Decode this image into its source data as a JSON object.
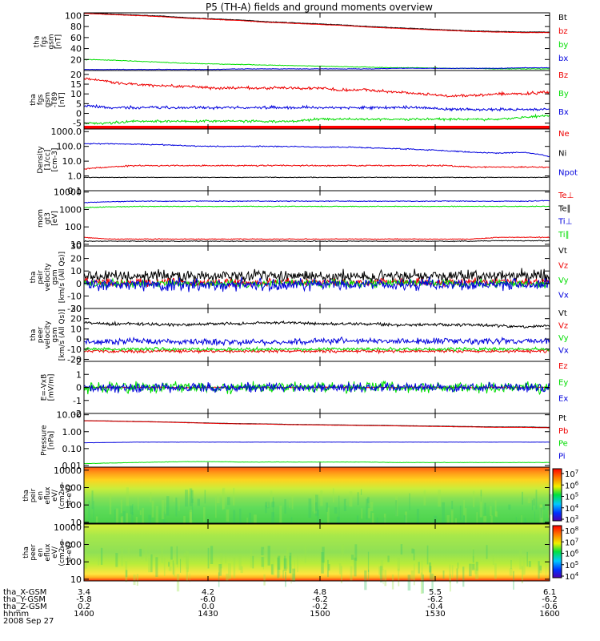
{
  "title": "P5 (TH-A) fields and ground moments overview",
  "colors": {
    "black": "#000000",
    "red": "#ee0000",
    "green": "#00dd00",
    "blue": "#0000dd",
    "frame": "#000000"
  },
  "footer": {
    "rows": [
      {
        "label": "tha_X-GSM",
        "values": [
          "3.4",
          "4.2",
          "4.8",
          "5.5",
          "6.1"
        ]
      },
      {
        "label": "tha_Y-GSM",
        "values": [
          "-5.8",
          "-6.0",
          "-6.2",
          "-6.2",
          "-6.2"
        ]
      },
      {
        "label": "tha_Z-GSM",
        "values": [
          "0.2",
          "0.0",
          "-0.2",
          "-0.4",
          "-0.6"
        ]
      },
      {
        "label": "hhmm",
        "values": [
          "1400",
          "1430",
          "1500",
          "1530",
          "1600"
        ]
      }
    ],
    "date": "2008 Sep 27"
  },
  "chart_data": [
    {
      "type": "line",
      "ylabel": "tha\nfgs\ngsm\n[nT]",
      "ylim": [
        0,
        105
      ],
      "yticks": [
        "100",
        "80",
        "60",
        "40",
        "20"
      ],
      "series": [
        {
          "name": "Bt",
          "color": "#000000",
          "values": [
            105,
            103,
            101,
            99,
            96,
            94,
            92,
            89,
            87,
            85,
            83,
            80,
            78,
            76,
            74,
            72,
            71,
            70,
            70
          ],
          "noise": 0.4
        },
        {
          "name": "bz",
          "color": "#ee0000",
          "values": [
            104,
            102,
            100,
            98,
            95,
            93,
            91,
            88,
            86,
            84,
            82,
            79,
            77,
            75,
            73,
            71,
            70,
            69,
            69
          ],
          "noise": 0.3
        },
        {
          "name": "by",
          "color": "#00dd00",
          "values": [
            20,
            19,
            17,
            15,
            13,
            12,
            11,
            10,
            9,
            8,
            7,
            6,
            5,
            5,
            4,
            4,
            3,
            3,
            3
          ],
          "noise": 0.5
        },
        {
          "name": "bx",
          "color": "#0000dd",
          "values": [
            2,
            2,
            2,
            2,
            2,
            2,
            3,
            3,
            3,
            3,
            3,
            3,
            4,
            4,
            4,
            4,
            4,
            5,
            5
          ],
          "noise": 0.4
        }
      ]
    },
    {
      "type": "line",
      "ylabel": "tha\nfgs\ngsm\n-T89\n[nT]",
      "ylim": [
        -8,
        22
      ],
      "yticks": [
        "20",
        "15",
        "10",
        "5",
        "0",
        "-5"
      ],
      "series": [
        {
          "name": "Bz",
          "color": "#ee0000",
          "values": [
            18,
            16,
            15,
            14,
            14,
            13,
            13,
            13,
            13,
            13,
            12,
            12,
            11,
            10,
            9,
            9,
            10,
            10,
            11
          ],
          "noise": 0.6
        },
        {
          "name": "By",
          "color": "#00dd00",
          "values": [
            -5,
            -5,
            -4,
            -4,
            -4,
            -4,
            -4,
            -4,
            -4,
            -3,
            -3,
            -3,
            -3,
            -3,
            -3,
            -3,
            -3,
            -2,
            -1
          ],
          "noise": 0.5
        },
        {
          "name": "Bx",
          "color": "#0000dd",
          "values": [
            4,
            3,
            3,
            3,
            3,
            3,
            3,
            3,
            3,
            3,
            3,
            3,
            3,
            3,
            2,
            2,
            2,
            2,
            2
          ],
          "noise": 0.6
        }
      ]
    },
    {
      "type": "line",
      "ylabel": "Density\n[1/cc]\n[cm-3]",
      "scale": "log",
      "ylim": [
        0.1,
        1500
      ],
      "yticks": [
        "1000.0",
        "100.0",
        "10.0",
        "1.0",
        "0.1"
      ],
      "series": [
        {
          "name": "Ne",
          "color": "#ee0000",
          "values": [
            3,
            4,
            5,
            5,
            5,
            5,
            5,
            5,
            5,
            5,
            5,
            5,
            5,
            5,
            5,
            4,
            4,
            4,
            4
          ],
          "noise": 0.04
        },
        {
          "name": "Ni",
          "color": "#000000",
          "values": [
            0.8,
            0.8,
            0.8,
            0.8,
            0.8,
            0.8,
            0.8,
            0.8,
            0.8,
            0.8,
            0.8,
            0.8,
            0.8,
            0.8,
            0.8,
            0.8,
            0.8,
            0.8,
            0.8
          ],
          "noise": 0.02
        },
        {
          "name": "Npot",
          "color": "#0000dd",
          "values": [
            150,
            150,
            140,
            130,
            110,
            100,
            100,
            100,
            100,
            90,
            90,
            80,
            70,
            60,
            50,
            40,
            35,
            40,
            20
          ],
          "noise": 0.03
        }
      ]
    },
    {
      "type": "line",
      "ylabel": "mom\ngt3\n[eV]",
      "scale": "log",
      "ylim": [
        8,
        12000
      ],
      "yticks": [
        "10000",
        "1000",
        "100",
        "10"
      ],
      "series": [
        {
          "name": "Te⊥",
          "color": "#ee0000",
          "values": [
            25,
            20,
            20,
            20,
            20,
            20,
            20,
            20,
            20,
            20,
            20,
            20,
            20,
            20,
            20,
            20,
            25,
            25,
            25
          ],
          "noise": 0.02
        },
        {
          "name": "Te∥",
          "color": "#000000",
          "values": [
            15,
            15,
            15,
            15,
            15,
            15,
            15,
            15,
            15,
            15,
            15,
            15,
            15,
            15,
            15,
            15,
            16,
            16,
            16
          ],
          "noise": 0.02
        },
        {
          "name": "Ti⊥",
          "color": "#0000dd",
          "values": [
            2500,
            2800,
            3000,
            3000,
            3000,
            3000,
            3000,
            3000,
            3000,
            3000,
            3000,
            3000,
            3000,
            3000,
            3000,
            3000,
            3000,
            3000,
            3200
          ],
          "noise": 0.02
        },
        {
          "name": "Ti∥",
          "color": "#00dd00",
          "values": [
            1300,
            1400,
            1500,
            1500,
            1500,
            1500,
            1500,
            1500,
            1500,
            1500,
            1500,
            1500,
            1500,
            1500,
            1500,
            1500,
            1500,
            1500,
            1500
          ],
          "noise": 0.02
        }
      ]
    },
    {
      "type": "line",
      "ylabel": "tha\npeir\nvelocity\ngsm\n[km/s (All Qs)]",
      "ylim": [
        -20,
        30
      ],
      "yticks": [
        "30",
        "20",
        "10",
        "0",
        "-10",
        "-20"
      ],
      "series": [
        {
          "name": "Vt",
          "color": "#000000",
          "values": [
            6,
            6,
            6,
            6,
            6,
            6,
            6,
            6,
            6,
            6,
            6,
            6,
            6,
            6,
            6,
            6,
            6,
            6,
            6
          ],
          "noise": 4
        },
        {
          "name": "Vz",
          "color": "#ee0000",
          "values": [
            1,
            1,
            1,
            1,
            1,
            1,
            1,
            1,
            1,
            1,
            1,
            1,
            1,
            1,
            1,
            1,
            1,
            1,
            1
          ],
          "noise": 2.5
        },
        {
          "name": "Vy",
          "color": "#00dd00",
          "values": [
            0,
            0,
            0,
            0,
            0,
            0,
            0,
            0,
            0,
            0,
            0,
            0,
            0,
            0,
            0,
            0,
            0,
            0,
            0
          ],
          "noise": 2.5
        },
        {
          "name": "Vx",
          "color": "#0000dd",
          "values": [
            -1,
            -1,
            -1,
            -1,
            -1,
            -1,
            -1,
            -1,
            -1,
            -1,
            -1,
            -1,
            -1,
            -1,
            -1,
            -1,
            -1,
            -1,
            -1
          ],
          "noise": 4
        }
      ]
    },
    {
      "type": "line",
      "ylabel": "tha\npeer\nvelocity\ngsm\n[km/s (All Qs)]",
      "ylim": [
        -22,
        30
      ],
      "yticks": [
        "30",
        "20",
        "10",
        "0",
        "-10",
        "-20"
      ],
      "series": [
        {
          "name": "Vt",
          "color": "#000000",
          "values": [
            16,
            15,
            15,
            14,
            14,
            15,
            15,
            16,
            16,
            15,
            15,
            15,
            14,
            14,
            14,
            14,
            13,
            12,
            13
          ],
          "noise": 1.2
        },
        {
          "name": "Vz",
          "color": "#ee0000",
          "values": [
            -12,
            -12,
            -12,
            -12,
            -12,
            -12,
            -12,
            -12,
            -12,
            -12,
            -12,
            -12,
            -12,
            -12,
            -12,
            -12,
            -12,
            -12,
            -12
          ],
          "noise": 1.2
        },
        {
          "name": "Vy",
          "color": "#00dd00",
          "values": [
            -10,
            -10,
            -10,
            -10,
            -10,
            -10,
            -10,
            -10,
            -10,
            -10,
            -10,
            -10,
            -10,
            -10,
            -10,
            -10,
            -10,
            -10,
            -10
          ],
          "noise": 1.3
        },
        {
          "name": "Vx",
          "color": "#0000dd",
          "values": [
            -3,
            -3,
            -2,
            -2,
            -2,
            -3,
            -3,
            -3,
            -3,
            -2,
            -2,
            -2,
            -2,
            -2,
            -2,
            -2,
            -2,
            -2,
            -2
          ],
          "noise": 2.6
        }
      ]
    },
    {
      "type": "line",
      "ylabel": "E=-VxB\n[mV/m]",
      "ylim": [
        -2,
        2
      ],
      "yticks": [
        "2",
        "1",
        "0",
        "-1",
        "-2"
      ],
      "series": [
        {
          "name": "Ez",
          "color": "#ee0000",
          "values": [
            0,
            0,
            0,
            0,
            0,
            0,
            0,
            0,
            0,
            0,
            0,
            0,
            0,
            0,
            0,
            0,
            0,
            0,
            0
          ],
          "noise": 0.04
        },
        {
          "name": "Ey",
          "color": "#00dd00",
          "values": [
            0,
            0,
            0,
            0,
            0,
            0,
            0,
            0,
            0,
            0,
            0,
            0,
            0,
            0,
            0,
            0,
            0,
            0,
            0
          ],
          "noise": 0.35
        },
        {
          "name": "Ex",
          "color": "#0000dd",
          "values": [
            0,
            0,
            0,
            0,
            0,
            0,
            0,
            0,
            0,
            0,
            0,
            0,
            0,
            0,
            0,
            0,
            0,
            0,
            0
          ],
          "noise": 0.3
        }
      ]
    },
    {
      "type": "line",
      "ylabel": "Pressure\n[nPa]",
      "scale": "log",
      "ylim": [
        0.008,
        12
      ],
      "yticks": [
        "10.00",
        "1.00",
        "0.10",
        "0.01"
      ],
      "series": [
        {
          "name": "Pt",
          "color": "#000000",
          "values": [
            4.5,
            4.3,
            4.0,
            3.8,
            3.5,
            3.2,
            3.0,
            2.9,
            2.7,
            2.6,
            2.5,
            2.4,
            2.3,
            2.2,
            2.1,
            2.0,
            1.9,
            1.9,
            1.8
          ],
          "noise": 0.005
        },
        {
          "name": "Pb",
          "color": "#ee0000",
          "values": [
            4.4,
            4.2,
            3.9,
            3.7,
            3.4,
            3.1,
            2.9,
            2.8,
            2.6,
            2.5,
            2.4,
            2.3,
            2.2,
            2.1,
            2.0,
            1.9,
            1.8,
            1.8,
            1.7
          ],
          "noise": 0.005
        },
        {
          "name": "Pe",
          "color": "#00dd00",
          "values": [
            0.013,
            0.014,
            0.015,
            0.016,
            0.017,
            0.017,
            0.016,
            0.016,
            0.016,
            0.016,
            0.016,
            0.016,
            0.015,
            0.015,
            0.015,
            0.015,
            0.015,
            0.015,
            0.015
          ],
          "noise": 0.01
        },
        {
          "name": "Pi",
          "color": "#0000dd",
          "values": [
            0.22,
            0.23,
            0.24,
            0.24,
            0.24,
            0.24,
            0.24,
            0.24,
            0.24,
            0.24,
            0.24,
            0.24,
            0.24,
            0.24,
            0.24,
            0.24,
            0.24,
            0.24,
            0.24
          ],
          "noise": 0.005
        }
      ]
    },
    {
      "type": "heatmap",
      "ylabel": "tha\npeir\nen\neflux\neV/\n(cm2-s-\nsr-eV)",
      "ylim": [
        8,
        15000
      ],
      "yticks": [
        "10000",
        "1000",
        "100",
        "10"
      ],
      "colorbar": {
        "ticks": [
          "10^7",
          "10^6",
          "10^5",
          "10^4",
          "10^3"
        ]
      }
    },
    {
      "type": "heatmap",
      "ylabel": "tha\npeer\nen\neflux\neV/\n(cm2-s-\nsr-eV)",
      "ylim": [
        8,
        15000
      ],
      "yticks": [
        "10000",
        "1000",
        "100",
        "10"
      ],
      "colorbar": {
        "ticks": [
          "10^8",
          "10^7",
          "10^6",
          "10^5",
          "10^4"
        ]
      }
    }
  ]
}
